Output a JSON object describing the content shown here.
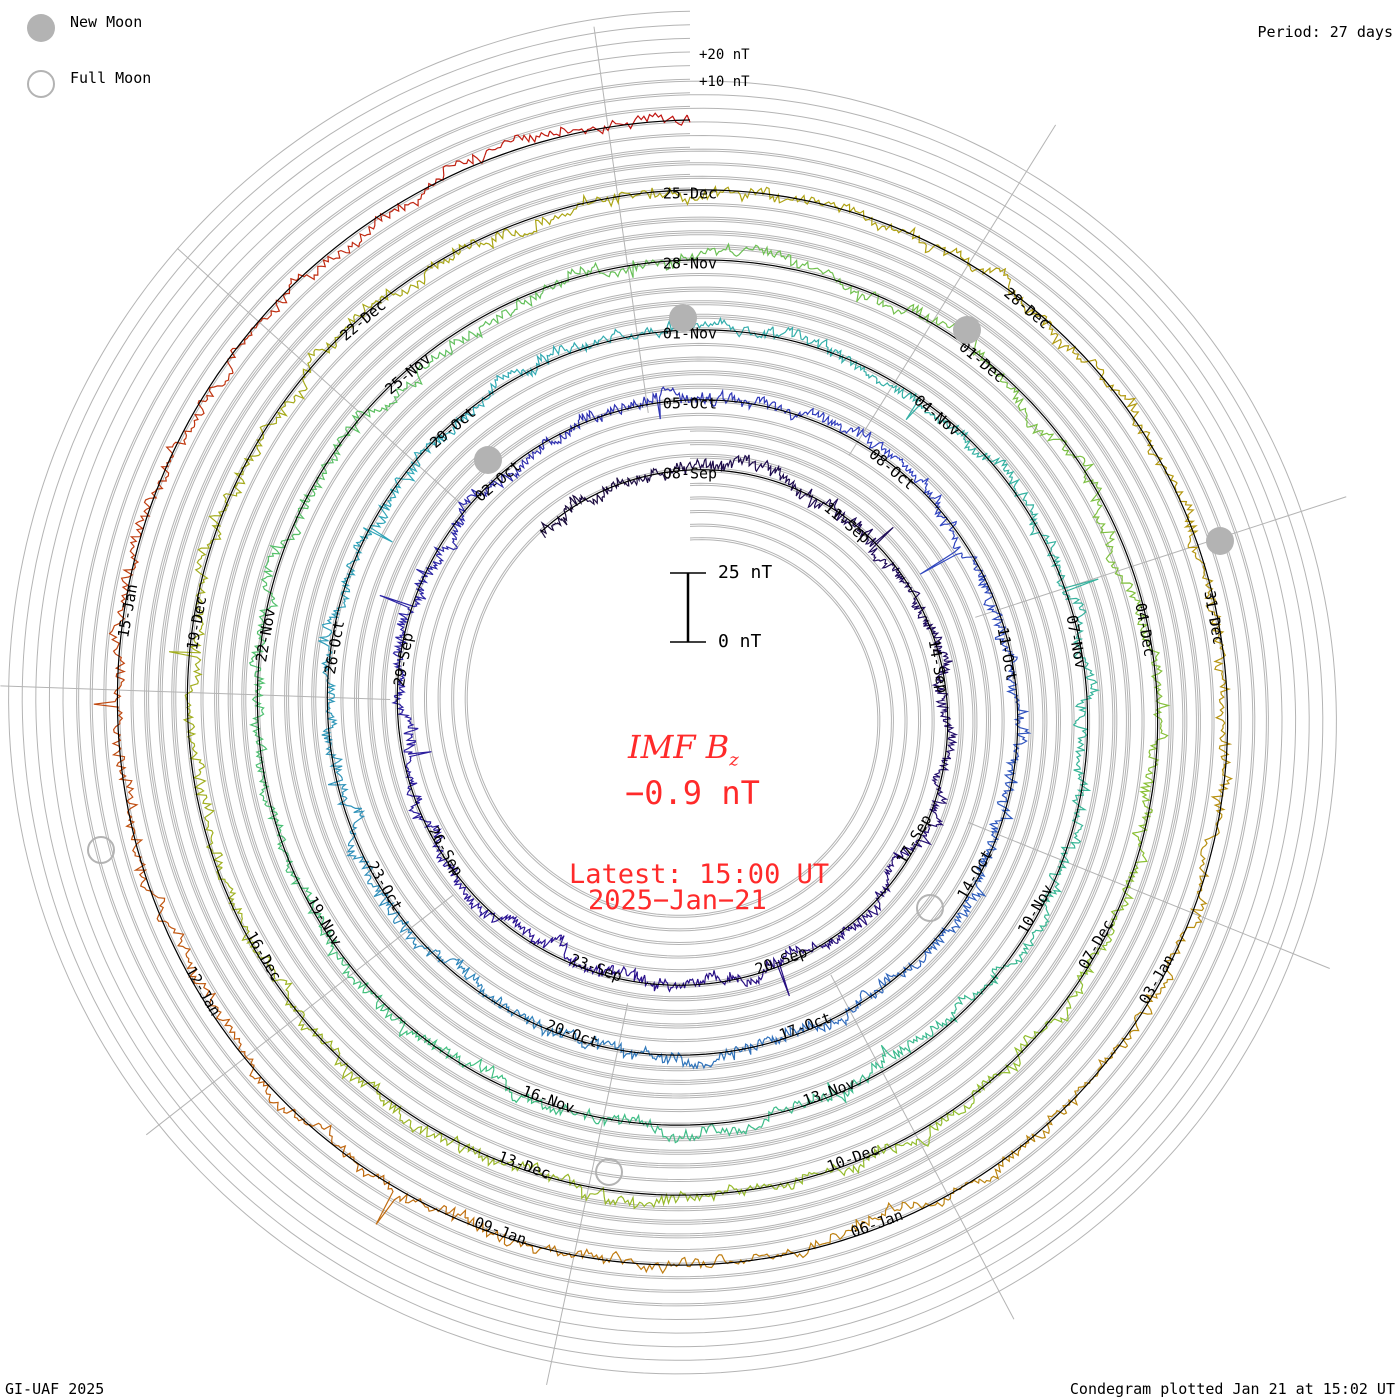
{
  "legend": {
    "new_moon": "New Moon",
    "full_moon": "Full Moon"
  },
  "period": "Period: 27 days",
  "footer_left": "GI-UAF 2025",
  "footer_right": "Condegram plotted Jan 21 at 15:02 UT",
  "center": {
    "title": "IMF B",
    "subscript": "z",
    "value": "−0.9 nT",
    "latest": "Latest: 15:00 UT",
    "date": "2025−Jan−21"
  },
  "chart_data": {
    "type": "line",
    "subtype": "spiral condegram",
    "title": "IMF Bz",
    "units": "nT",
    "period_days": 27,
    "latest_value": -0.9,
    "start_label": "08-Sep",
    "end_date": "2025-Jan-21",
    "scale_bar": {
      "top": "25 nT",
      "bottom": "0 nT"
    },
    "ring_labels": [
      "+20 nT",
      "+10 nT"
    ],
    "gridline_step_nT": 5,
    "date_labels": [
      "08-Sep",
      "11-Sep",
      "14-Sep",
      "17-Sep",
      "20-Sep",
      "23-Sep",
      "26-Sep",
      "29-Sep",
      "02-Oct",
      "05-Oct",
      "08-Oct",
      "11-Oct",
      "14-Oct",
      "17-Oct",
      "20-Oct",
      "23-Oct",
      "26-Oct",
      "29-Oct",
      "01-Nov",
      "04-Nov",
      "07-Nov",
      "10-Nov",
      "13-Nov",
      "16-Nov",
      "19-Nov",
      "22-Nov",
      "25-Nov",
      "28-Nov",
      "01-Dec",
      "04-Dec",
      "07-Dec",
      "10-Dec",
      "13-Dec",
      "16-Dec",
      "19-Dec",
      "22-Dec",
      "25-Dec",
      "28-Dec",
      "31-Dec",
      "03-Jan",
      "06-Jan",
      "09-Jan",
      "12-Jan",
      "15-Jan"
    ],
    "date_label_step_days": 3,
    "data_start_day": -3,
    "data_end_day": 135,
    "new_moons": [
      "02-Oct",
      "01-Nov",
      "01-Dec",
      "30-Dec"
    ],
    "full_moons": [
      "17-Oct",
      "15-Nov",
      "13-Jan"
    ],
    "color_stops": [
      {
        "day": -3,
        "color": "#1a0a3a"
      },
      {
        "day": 15,
        "color": "#2a1090"
      },
      {
        "day": 30,
        "color": "#3040c0"
      },
      {
        "day": 50,
        "color": "#30a8b8"
      },
      {
        "day": 70,
        "color": "#40c080"
      },
      {
        "day": 90,
        "color": "#90c030"
      },
      {
        "day": 110,
        "color": "#b0a010"
      },
      {
        "day": 122,
        "color": "#c07a10"
      },
      {
        "day": 135,
        "color": "#c01010"
      }
    ]
  }
}
